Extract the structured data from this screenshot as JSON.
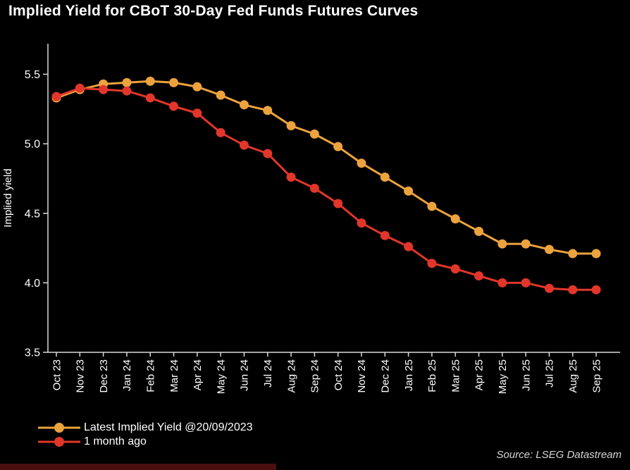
{
  "chart_data": {
    "type": "line",
    "title": "Implied Yield for CBoT 30-Day Fed Funds Futures Curves",
    "ylabel": "Implied yield",
    "xlabel": "",
    "source": "Source: LSEG Datastream",
    "ylim": [
      3.5,
      5.72
    ],
    "yticks": [
      3.5,
      4.0,
      4.5,
      5.0,
      5.5
    ],
    "grid": false,
    "legend_position": "bottom-left",
    "background": "#000000",
    "axis_color": "#d9d9d9",
    "text_color": "#ffffff",
    "categories": [
      "Oct 23",
      "Nov 23",
      "Dec 23",
      "Jan 24",
      "Feb 24",
      "Mar 24",
      "Apr 24",
      "May 24",
      "Jun 24",
      "Jul 24",
      "Aug 24",
      "Sep 24",
      "Oct 24",
      "Nov 24",
      "Dec 24",
      "Jan 25",
      "Feb 25",
      "Mar 25",
      "Apr 25",
      "May 25",
      "Jun 25",
      "Jul 25",
      "Aug 25",
      "Sep 25"
    ],
    "series": [
      {
        "name": "Latest Implied Yield @20/09/2023",
        "color": "#ECA33D",
        "values": [
          5.33,
          5.39,
          5.43,
          5.44,
          5.45,
          5.44,
          5.41,
          5.35,
          5.28,
          5.24,
          5.13,
          5.07,
          4.98,
          4.86,
          4.76,
          4.66,
          4.55,
          4.46,
          4.37,
          4.28,
          4.28,
          4.24,
          4.21,
          4.21
        ]
      },
      {
        "name": "1 month ago",
        "color": "#E2362A",
        "values": [
          5.34,
          5.4,
          5.39,
          5.38,
          5.33,
          5.27,
          5.22,
          5.08,
          4.99,
          4.93,
          4.76,
          4.68,
          4.57,
          4.43,
          4.34,
          4.26,
          4.14,
          4.1,
          4.05,
          4.0,
          4.0,
          3.96,
          3.95,
          3.95
        ]
      }
    ]
  }
}
